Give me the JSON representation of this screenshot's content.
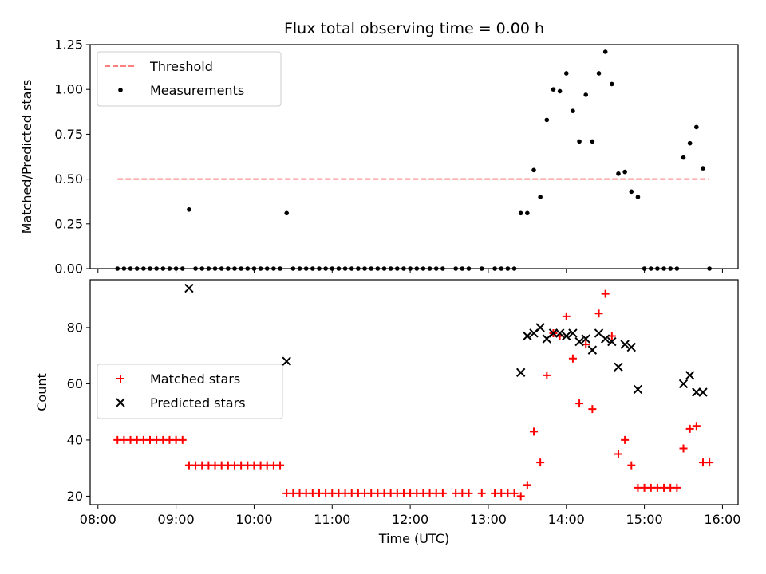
{
  "chart_data": [
    {
      "type": "scatter",
      "title": "Flux total observing time = 0.00 h",
      "xlabel": "",
      "ylabel": "Matched/Predicted stars",
      "xlim": [
        "07:54",
        "16:12"
      ],
      "ylim": [
        0.0,
        1.25
      ],
      "yticks": [
        "0.00",
        "0.25",
        "0.50",
        "0.75",
        "1.00",
        "1.25"
      ],
      "legend_placement": "upper-left",
      "threshold": {
        "name": "Threshold",
        "color": "#ff7f7f",
        "style": "dashed",
        "x_start": "08:15",
        "x_end": "15:50",
        "y": 0.5
      },
      "series": [
        {
          "name": "Measurements",
          "color": "#000000",
          "marker": "dot",
          "points": [
            [
              "08:15",
              0.0
            ],
            [
              "08:20",
              0.0
            ],
            [
              "08:25",
              0.0
            ],
            [
              "08:30",
              0.0
            ],
            [
              "08:35",
              0.0
            ],
            [
              "08:40",
              0.0
            ],
            [
              "08:45",
              0.0
            ],
            [
              "08:50",
              0.0
            ],
            [
              "08:55",
              0.0
            ],
            [
              "09:00",
              0.0
            ],
            [
              "09:05",
              0.0
            ],
            [
              "09:10",
              0.33
            ],
            [
              "09:15",
              0.0
            ],
            [
              "09:20",
              0.0
            ],
            [
              "09:25",
              0.0
            ],
            [
              "09:30",
              0.0
            ],
            [
              "09:35",
              0.0
            ],
            [
              "09:40",
              0.0
            ],
            [
              "09:45",
              0.0
            ],
            [
              "09:50",
              0.0
            ],
            [
              "09:55",
              0.0
            ],
            [
              "10:00",
              0.0
            ],
            [
              "10:05",
              0.0
            ],
            [
              "10:10",
              0.0
            ],
            [
              "10:15",
              0.0
            ],
            [
              "10:20",
              0.0
            ],
            [
              "10:25",
              0.31
            ],
            [
              "10:30",
              0.0
            ],
            [
              "10:35",
              0.0
            ],
            [
              "10:40",
              0.0
            ],
            [
              "10:45",
              0.0
            ],
            [
              "10:50",
              0.0
            ],
            [
              "10:55",
              0.0
            ],
            [
              "11:00",
              0.0
            ],
            [
              "11:05",
              0.0
            ],
            [
              "11:10",
              0.0
            ],
            [
              "11:15",
              0.0
            ],
            [
              "11:20",
              0.0
            ],
            [
              "11:25",
              0.0
            ],
            [
              "11:30",
              0.0
            ],
            [
              "11:35",
              0.0
            ],
            [
              "11:40",
              0.0
            ],
            [
              "11:45",
              0.0
            ],
            [
              "11:50",
              0.0
            ],
            [
              "11:55",
              0.0
            ],
            [
              "12:00",
              0.0
            ],
            [
              "12:05",
              0.0
            ],
            [
              "12:10",
              0.0
            ],
            [
              "12:15",
              0.0
            ],
            [
              "12:20",
              0.0
            ],
            [
              "12:25",
              0.0
            ],
            [
              "12:35",
              0.0
            ],
            [
              "12:40",
              0.0
            ],
            [
              "12:45",
              0.0
            ],
            [
              "12:55",
              0.0
            ],
            [
              "13:05",
              0.0
            ],
            [
              "13:10",
              0.0
            ],
            [
              "13:15",
              0.0
            ],
            [
              "13:20",
              0.0
            ],
            [
              "13:25",
              0.31
            ],
            [
              "13:30",
              0.31
            ],
            [
              "13:35",
              0.55
            ],
            [
              "13:40",
              0.4
            ],
            [
              "13:45",
              0.83
            ],
            [
              "13:50",
              1.0
            ],
            [
              "13:55",
              0.99
            ],
            [
              "14:00",
              1.09
            ],
            [
              "14:05",
              0.88
            ],
            [
              "14:10",
              0.71
            ],
            [
              "14:15",
              0.97
            ],
            [
              "14:20",
              0.71
            ],
            [
              "14:25",
              1.09
            ],
            [
              "14:30",
              1.21
            ],
            [
              "14:35",
              1.03
            ],
            [
              "14:40",
              0.53
            ],
            [
              "14:45",
              0.54
            ],
            [
              "14:50",
              0.43
            ],
            [
              "14:55",
              0.4
            ],
            [
              "15:00",
              0.0
            ],
            [
              "15:05",
              0.0
            ],
            [
              "15:10",
              0.0
            ],
            [
              "15:15",
              0.0
            ],
            [
              "15:20",
              0.0
            ],
            [
              "15:25",
              0.0
            ],
            [
              "15:30",
              0.62
            ],
            [
              "15:35",
              0.7
            ],
            [
              "15:40",
              0.79
            ],
            [
              "15:45",
              0.56
            ],
            [
              "15:50",
              0.0
            ]
          ]
        }
      ]
    },
    {
      "type": "scatter",
      "title": "",
      "xlabel": "Time (UTC)",
      "ylabel": "Count",
      "xlim": [
        "07:54",
        "16:12"
      ],
      "ylim": [
        17,
        97
      ],
      "yticks": [
        "20",
        "40",
        "60",
        "80"
      ],
      "xticks": [
        "08:00",
        "09:00",
        "10:00",
        "11:00",
        "12:00",
        "13:00",
        "14:00",
        "15:00",
        "16:00"
      ],
      "legend_placement": "center-left",
      "series": [
        {
          "name": "Matched stars",
          "color": "#ff0000",
          "marker": "plus",
          "points": [
            [
              "08:15",
              40
            ],
            [
              "08:20",
              40
            ],
            [
              "08:25",
              40
            ],
            [
              "08:30",
              40
            ],
            [
              "08:35",
              40
            ],
            [
              "08:40",
              40
            ],
            [
              "08:45",
              40
            ],
            [
              "08:50",
              40
            ],
            [
              "08:55",
              40
            ],
            [
              "09:00",
              40
            ],
            [
              "09:05",
              40
            ],
            [
              "09:10",
              31
            ],
            [
              "09:15",
              31
            ],
            [
              "09:20",
              31
            ],
            [
              "09:25",
              31
            ],
            [
              "09:30",
              31
            ],
            [
              "09:35",
              31
            ],
            [
              "09:40",
              31
            ],
            [
              "09:45",
              31
            ],
            [
              "09:50",
              31
            ],
            [
              "09:55",
              31
            ],
            [
              "10:00",
              31
            ],
            [
              "10:05",
              31
            ],
            [
              "10:10",
              31
            ],
            [
              "10:15",
              31
            ],
            [
              "10:20",
              31
            ],
            [
              "10:25",
              21
            ],
            [
              "10:30",
              21
            ],
            [
              "10:35",
              21
            ],
            [
              "10:40",
              21
            ],
            [
              "10:45",
              21
            ],
            [
              "10:50",
              21
            ],
            [
              "10:55",
              21
            ],
            [
              "11:00",
              21
            ],
            [
              "11:05",
              21
            ],
            [
              "11:10",
              21
            ],
            [
              "11:15",
              21
            ],
            [
              "11:20",
              21
            ],
            [
              "11:25",
              21
            ],
            [
              "11:30",
              21
            ],
            [
              "11:35",
              21
            ],
            [
              "11:40",
              21
            ],
            [
              "11:45",
              21
            ],
            [
              "11:50",
              21
            ],
            [
              "11:55",
              21
            ],
            [
              "12:00",
              21
            ],
            [
              "12:05",
              21
            ],
            [
              "12:10",
              21
            ],
            [
              "12:15",
              21
            ],
            [
              "12:20",
              21
            ],
            [
              "12:25",
              21
            ],
            [
              "12:35",
              21
            ],
            [
              "12:40",
              21
            ],
            [
              "12:45",
              21
            ],
            [
              "12:55",
              21
            ],
            [
              "13:05",
              21
            ],
            [
              "13:10",
              21
            ],
            [
              "13:15",
              21
            ],
            [
              "13:20",
              21
            ],
            [
              "13:25",
              20
            ],
            [
              "13:30",
              24
            ],
            [
              "13:35",
              43
            ],
            [
              "13:40",
              32
            ],
            [
              "13:45",
              63
            ],
            [
              "13:50",
              78
            ],
            [
              "13:55",
              77
            ],
            [
              "14:00",
              84
            ],
            [
              "14:05",
              69
            ],
            [
              "14:10",
              53
            ],
            [
              "14:15",
              74
            ],
            [
              "14:20",
              51
            ],
            [
              "14:25",
              85
            ],
            [
              "14:30",
              92
            ],
            [
              "14:35",
              77
            ],
            [
              "14:40",
              35
            ],
            [
              "14:45",
              40
            ],
            [
              "14:50",
              31
            ],
            [
              "14:55",
              23
            ],
            [
              "15:00",
              23
            ],
            [
              "15:05",
              23
            ],
            [
              "15:10",
              23
            ],
            [
              "15:15",
              23
            ],
            [
              "15:20",
              23
            ],
            [
              "15:25",
              23
            ],
            [
              "15:30",
              37
            ],
            [
              "15:35",
              44
            ],
            [
              "15:40",
              45
            ],
            [
              "15:45",
              32
            ],
            [
              "15:50",
              32
            ]
          ]
        },
        {
          "name": "Predicted stars",
          "color": "#000000",
          "marker": "x",
          "points": [
            [
              "09:10",
              94
            ],
            [
              "10:25",
              68
            ],
            [
              "13:25",
              64
            ],
            [
              "13:30",
              77
            ],
            [
              "13:35",
              78
            ],
            [
              "13:40",
              80
            ],
            [
              "13:45",
              76
            ],
            [
              "13:50",
              78
            ],
            [
              "13:55",
              78
            ],
            [
              "14:00",
              77
            ],
            [
              "14:05",
              78
            ],
            [
              "14:10",
              75
            ],
            [
              "14:15",
              76
            ],
            [
              "14:20",
              72
            ],
            [
              "14:25",
              78
            ],
            [
              "14:30",
              76
            ],
            [
              "14:35",
              75
            ],
            [
              "14:40",
              66
            ],
            [
              "14:45",
              74
            ],
            [
              "14:50",
              73
            ],
            [
              "14:55",
              58
            ],
            [
              "15:30",
              60
            ],
            [
              "15:35",
              63
            ],
            [
              "15:40",
              57
            ],
            [
              "15:45",
              57
            ]
          ]
        }
      ]
    }
  ]
}
